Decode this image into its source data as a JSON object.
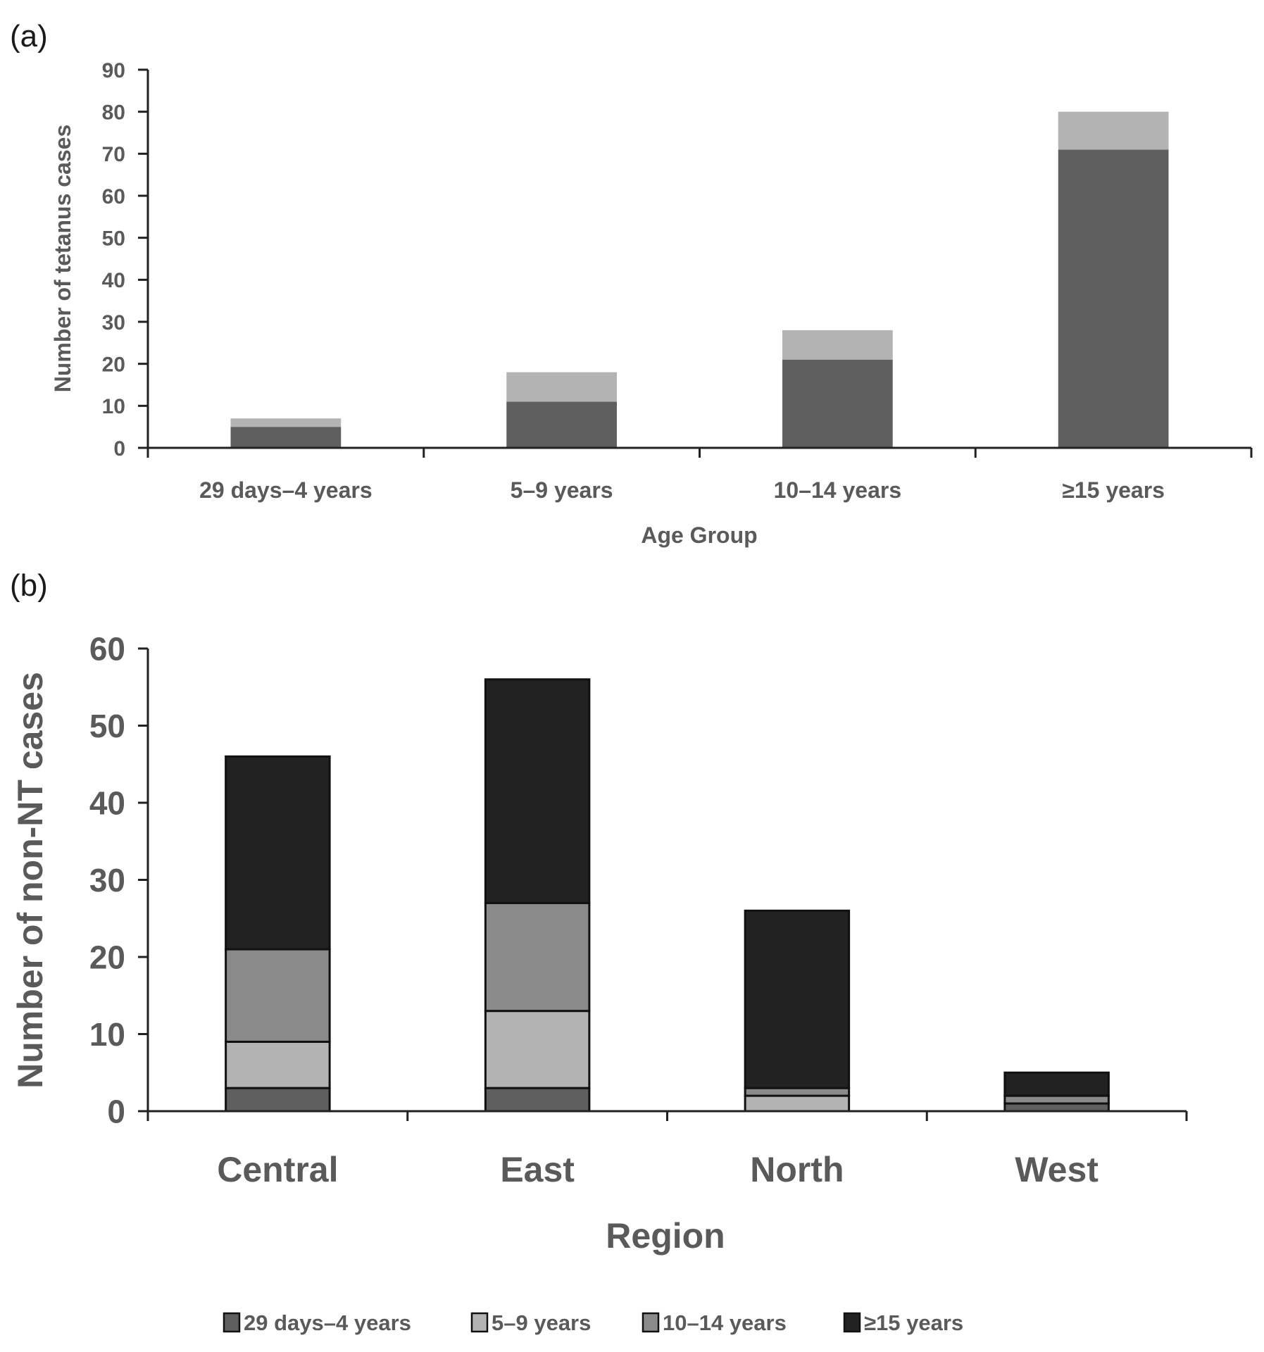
{
  "panels": {
    "a_label": "(a)",
    "b_label": "(b)"
  },
  "colors": {
    "29 days–4 years": "#5f5f5f",
    "5–9 years": "#b3b3b3",
    "10–14 years": "#8a8a8a",
    "≥15 years": "#222222",
    "text": "#5a5a5a",
    "axis": "#222222"
  },
  "chart_data": [
    {
      "id": "a",
      "type": "bar",
      "stacked": true,
      "title": "",
      "xlabel": "Age Group",
      "ylabel": "Number of tetanus cases",
      "ylim": [
        0,
        90
      ],
      "yticks": [
        0,
        10,
        20,
        30,
        40,
        50,
        60,
        70,
        80,
        90
      ],
      "categories": [
        "29 days–4 years",
        "5–9 years",
        "10–14 years",
        "≥15 years"
      ],
      "series": [
        {
          "name": "dark",
          "color": "#5f5f5f",
          "values": [
            5,
            11,
            21,
            71
          ]
        },
        {
          "name": "light",
          "color": "#b3b3b3",
          "values": [
            2,
            7,
            7,
            9
          ]
        }
      ],
      "totals": [
        7,
        18,
        28,
        80
      ],
      "grid": false,
      "legend": "none"
    },
    {
      "id": "b",
      "type": "bar",
      "stacked": true,
      "title": "",
      "xlabel": "Region",
      "ylabel": "Number of non-NT cases",
      "ylim": [
        0,
        60
      ],
      "yticks": [
        0,
        10,
        20,
        30,
        40,
        50,
        60
      ],
      "categories": [
        "Central",
        "East",
        "North",
        "West"
      ],
      "series": [
        {
          "name": "29 days–4 years",
          "color": "#5f5f5f",
          "values": [
            3,
            3,
            0,
            1
          ]
        },
        {
          "name": "5–9 years",
          "color": "#b3b3b3",
          "values": [
            6,
            10,
            2,
            0
          ]
        },
        {
          "name": "10–14 years",
          "color": "#8a8a8a",
          "values": [
            12,
            14,
            1,
            1
          ]
        },
        {
          "name": "≥15 years",
          "color": "#222222",
          "values": [
            25,
            29,
            23,
            3
          ]
        }
      ],
      "totals": [
        46,
        56,
        26,
        5
      ],
      "grid": false,
      "legend": "bottom"
    }
  ]
}
